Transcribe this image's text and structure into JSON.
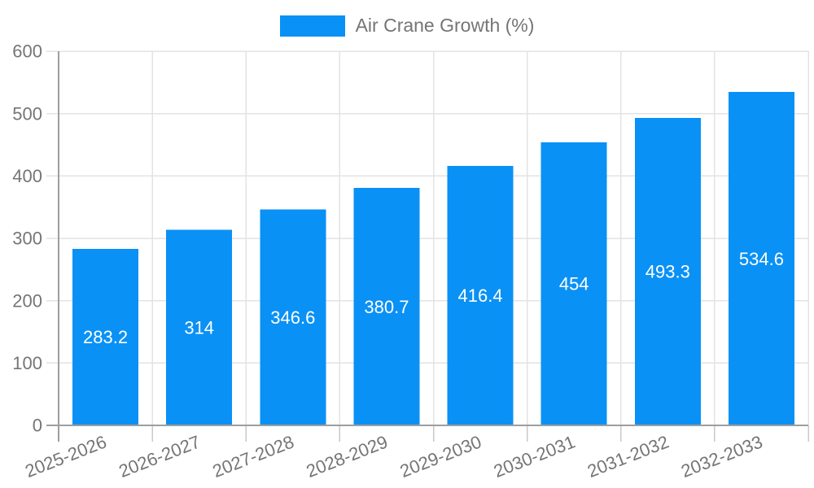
{
  "legend": {
    "label": "Air Crane Growth (%)"
  },
  "chart_data": {
    "type": "bar",
    "title": "",
    "xlabel": "",
    "ylabel": "",
    "categories": [
      "2025-2026",
      "2026-2027",
      "2027-2028",
      "2028-2029",
      "2029-2030",
      "2030-2031",
      "2031-2032",
      "2032-2033"
    ],
    "series": [
      {
        "name": "Air Crane Growth (%)",
        "values": [
          283.2,
          314,
          346.6,
          380.7,
          416.4,
          454,
          493.3,
          534.6
        ]
      }
    ],
    "value_labels": [
      "283.2",
      "314",
      "346.6",
      "380.7",
      "416.4",
      "454",
      "493.3",
      "534.6"
    ],
    "ylim": [
      0,
      600
    ],
    "yticks": [
      0,
      100,
      200,
      300,
      400,
      500,
      600
    ],
    "grid": true,
    "legend_position": "top",
    "colors": {
      "bar": "#0a91f5",
      "axis_text": "#757575",
      "grid_line": "#e3e3e3",
      "axis_line": "#9e9e9e",
      "minor_tick": "#c9c9c9",
      "value_label": "#ffffff",
      "background": "#ffffff"
    }
  }
}
